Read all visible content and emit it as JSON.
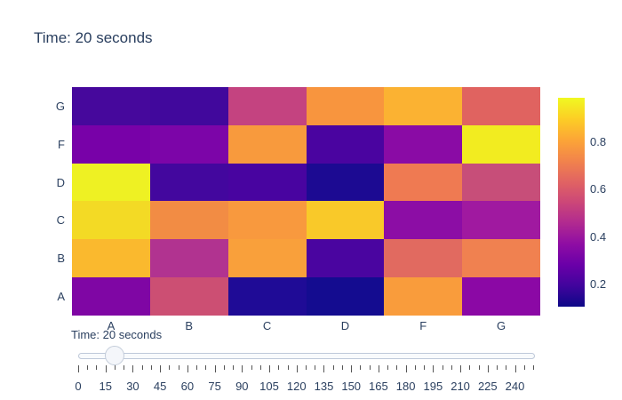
{
  "title": "Time: 20 seconds",
  "chart_data": {
    "type": "heatmap",
    "title": "Time: 20 seconds",
    "x_categories": [
      "A",
      "B",
      "C",
      "D",
      "F",
      "G"
    ],
    "y_categories_top_to_bottom": [
      "G",
      "F",
      "D",
      "C",
      "B",
      "A"
    ],
    "colorscale_name": "plasma",
    "zmin": 0.106,
    "zmax": 0.988,
    "grid": false,
    "legend_position": "colorbar-right",
    "z_rows_top_to_bottom": [
      [
        0.19,
        0.19,
        0.56,
        0.77,
        0.83,
        0.64
      ],
      [
        0.3,
        0.31,
        0.78,
        0.2,
        0.34,
        0.97
      ],
      [
        0.99,
        0.19,
        0.2,
        0.13,
        0.7,
        0.57
      ],
      [
        0.93,
        0.74,
        0.78,
        0.88,
        0.35,
        0.4
      ],
      [
        0.85,
        0.48,
        0.79,
        0.2,
        0.65,
        0.71
      ],
      [
        0.32,
        0.57,
        0.14,
        0.12,
        0.79,
        0.34
      ]
    ],
    "cell_colors_rows_top_to_bottom": [
      [
        "#46089c",
        "#41089c",
        "#c44380",
        "#f8953e",
        "#fbb232",
        "#e06360"
      ],
      [
        "#7801a8",
        "#7c05a8",
        "#f89a3d",
        "#4a04a0",
        "#8a0ba5",
        "#f2ec20"
      ],
      [
        "#eef123",
        "#43079e",
        "#4804a0",
        "#1c0a92",
        "#ef7a52",
        "#c74e79"
      ],
      [
        "#f3da25",
        "#f28c44",
        "#f8993e",
        "#f9c929",
        "#8c0da5",
        "#a019a0"
      ],
      [
        "#fab92e",
        "#b13390",
        "#f9a03b",
        "#4a05a0",
        "#e16a60",
        "#f08150"
      ],
      [
        "#7f06a4",
        "#cc4f73",
        "#1f0b96",
        "#140c90",
        "#f99c3c",
        "#8b08a5"
      ]
    ],
    "colorbar": {
      "tick_values": [
        0.2,
        0.4,
        0.6,
        0.8
      ],
      "tick_labels": [
        "0.2",
        "0.4",
        "0.6",
        "0.8"
      ],
      "gradient_stops_bottom_to_top": [
        "#0d0887",
        "#41049d",
        "#6a00a8",
        "#8f0da4",
        "#b12a90",
        "#cc4778",
        "#e16462",
        "#f2844b",
        "#fca636",
        "#fcce25",
        "#f0f921"
      ]
    }
  },
  "slider": {
    "current_value_label": "Time: 20 seconds",
    "value": 20,
    "min": 0,
    "max": 250,
    "step": 5,
    "major_step": 15,
    "tick_labels": [
      "0",
      "15",
      "30",
      "45",
      "60",
      "75",
      "90",
      "105",
      "120",
      "135",
      "150",
      "165",
      "180",
      "195",
      "210",
      "225",
      "240"
    ]
  },
  "colors": {
    "text": "#2a3f5f",
    "tick": "#555555",
    "rail_bg": "#f8fafc",
    "rail_border": "#bec8d9",
    "handle_bg": "#f4f6fa",
    "handle_border": "#c4cdda",
    "background": "#ffffff"
  }
}
